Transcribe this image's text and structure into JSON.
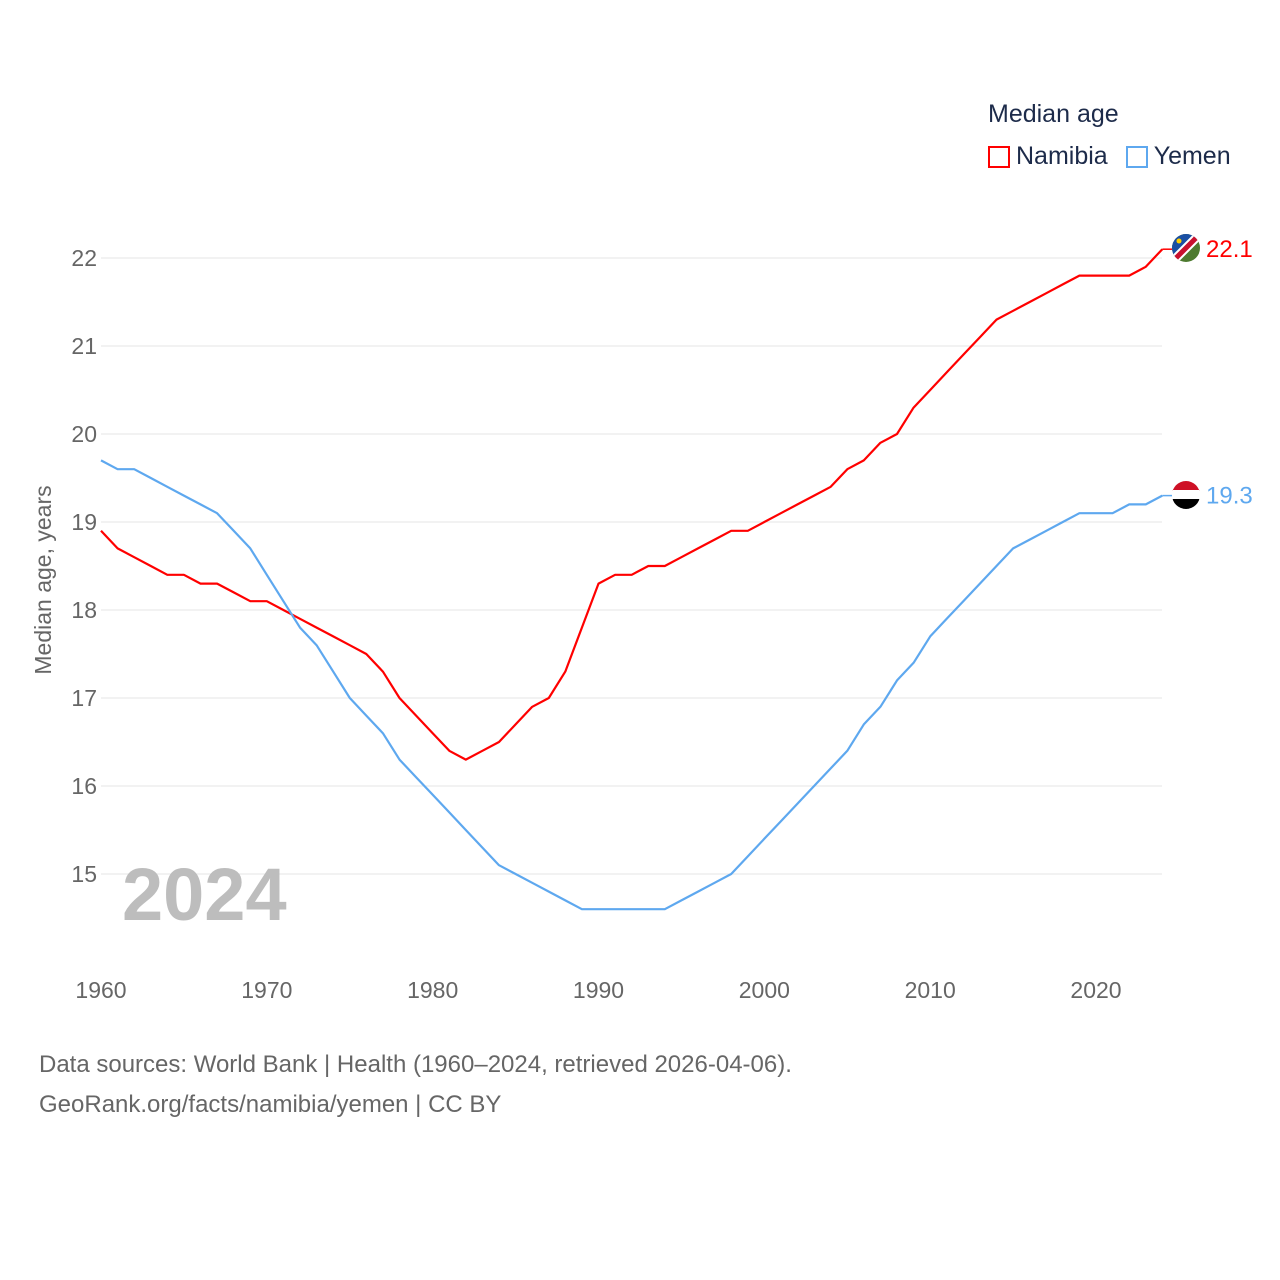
{
  "chart_data": {
    "type": "line",
    "title": "Median age",
    "xlabel": "",
    "ylabel": "Median age, years",
    "xlim": [
      1960,
      2024
    ],
    "ylim": [
      14.2,
      22.3
    ],
    "x_ticks": [
      1960,
      1970,
      1980,
      1990,
      2000,
      2010,
      2020
    ],
    "y_ticks": [
      15,
      16,
      17,
      18,
      19,
      20,
      21,
      22
    ],
    "grid": true,
    "legend_placement": "top-right",
    "year_label": "2024",
    "x": [
      1960,
      1961,
      1962,
      1963,
      1964,
      1965,
      1966,
      1967,
      1968,
      1969,
      1970,
      1971,
      1972,
      1973,
      1974,
      1975,
      1976,
      1977,
      1978,
      1979,
      1980,
      1981,
      1982,
      1983,
      1984,
      1985,
      1986,
      1987,
      1988,
      1989,
      1990,
      1991,
      1992,
      1993,
      1994,
      1995,
      1996,
      1997,
      1998,
      1999,
      2000,
      2001,
      2002,
      2003,
      2004,
      2005,
      2006,
      2007,
      2008,
      2009,
      2010,
      2011,
      2012,
      2013,
      2014,
      2015,
      2016,
      2017,
      2018,
      2019,
      2020,
      2021,
      2022,
      2023,
      2024
    ],
    "series": [
      {
        "name": "Namibia",
        "color": "#ff0000",
        "end_label": "22.1",
        "values": [
          18.9,
          18.7,
          18.6,
          18.5,
          18.4,
          18.4,
          18.3,
          18.3,
          18.2,
          18.1,
          18.1,
          18.0,
          17.9,
          17.8,
          17.7,
          17.6,
          17.5,
          17.3,
          17.0,
          16.8,
          16.6,
          16.4,
          16.3,
          16.4,
          16.5,
          16.7,
          16.9,
          17.0,
          17.3,
          17.8,
          18.3,
          18.4,
          18.4,
          18.5,
          18.5,
          18.6,
          18.7,
          18.8,
          18.9,
          18.9,
          19.0,
          19.1,
          19.2,
          19.3,
          19.4,
          19.6,
          19.7,
          19.9,
          20.0,
          20.3,
          20.5,
          20.7,
          20.9,
          21.1,
          21.3,
          21.4,
          21.5,
          21.6,
          21.7,
          21.8,
          21.8,
          21.8,
          21.8,
          21.9,
          22.1
        ]
      },
      {
        "name": "Yemen",
        "color": "#5ea8ef",
        "end_label": "19.3",
        "values": [
          19.7,
          19.6,
          19.6,
          19.5,
          19.4,
          19.3,
          19.2,
          19.1,
          18.9,
          18.7,
          18.4,
          18.1,
          17.8,
          17.6,
          17.3,
          17.0,
          16.8,
          16.6,
          16.3,
          16.1,
          15.9,
          15.7,
          15.5,
          15.3,
          15.1,
          15.0,
          14.9,
          14.8,
          14.7,
          14.6,
          14.6,
          14.6,
          14.6,
          14.6,
          14.6,
          14.7,
          14.8,
          14.9,
          15.0,
          15.2,
          15.4,
          15.6,
          15.8,
          16.0,
          16.2,
          16.4,
          16.7,
          16.9,
          17.2,
          17.4,
          17.7,
          17.9,
          18.1,
          18.3,
          18.5,
          18.7,
          18.8,
          18.9,
          19.0,
          19.1,
          19.1,
          19.1,
          19.2,
          19.2,
          19.3
        ]
      }
    ]
  },
  "source": {
    "line1": "Data sources: World Bank | Health (1960–2024, retrieved 2026-04-06).",
    "line2": "GeoRank.org/facts/namibia/yemen | CC BY"
  }
}
